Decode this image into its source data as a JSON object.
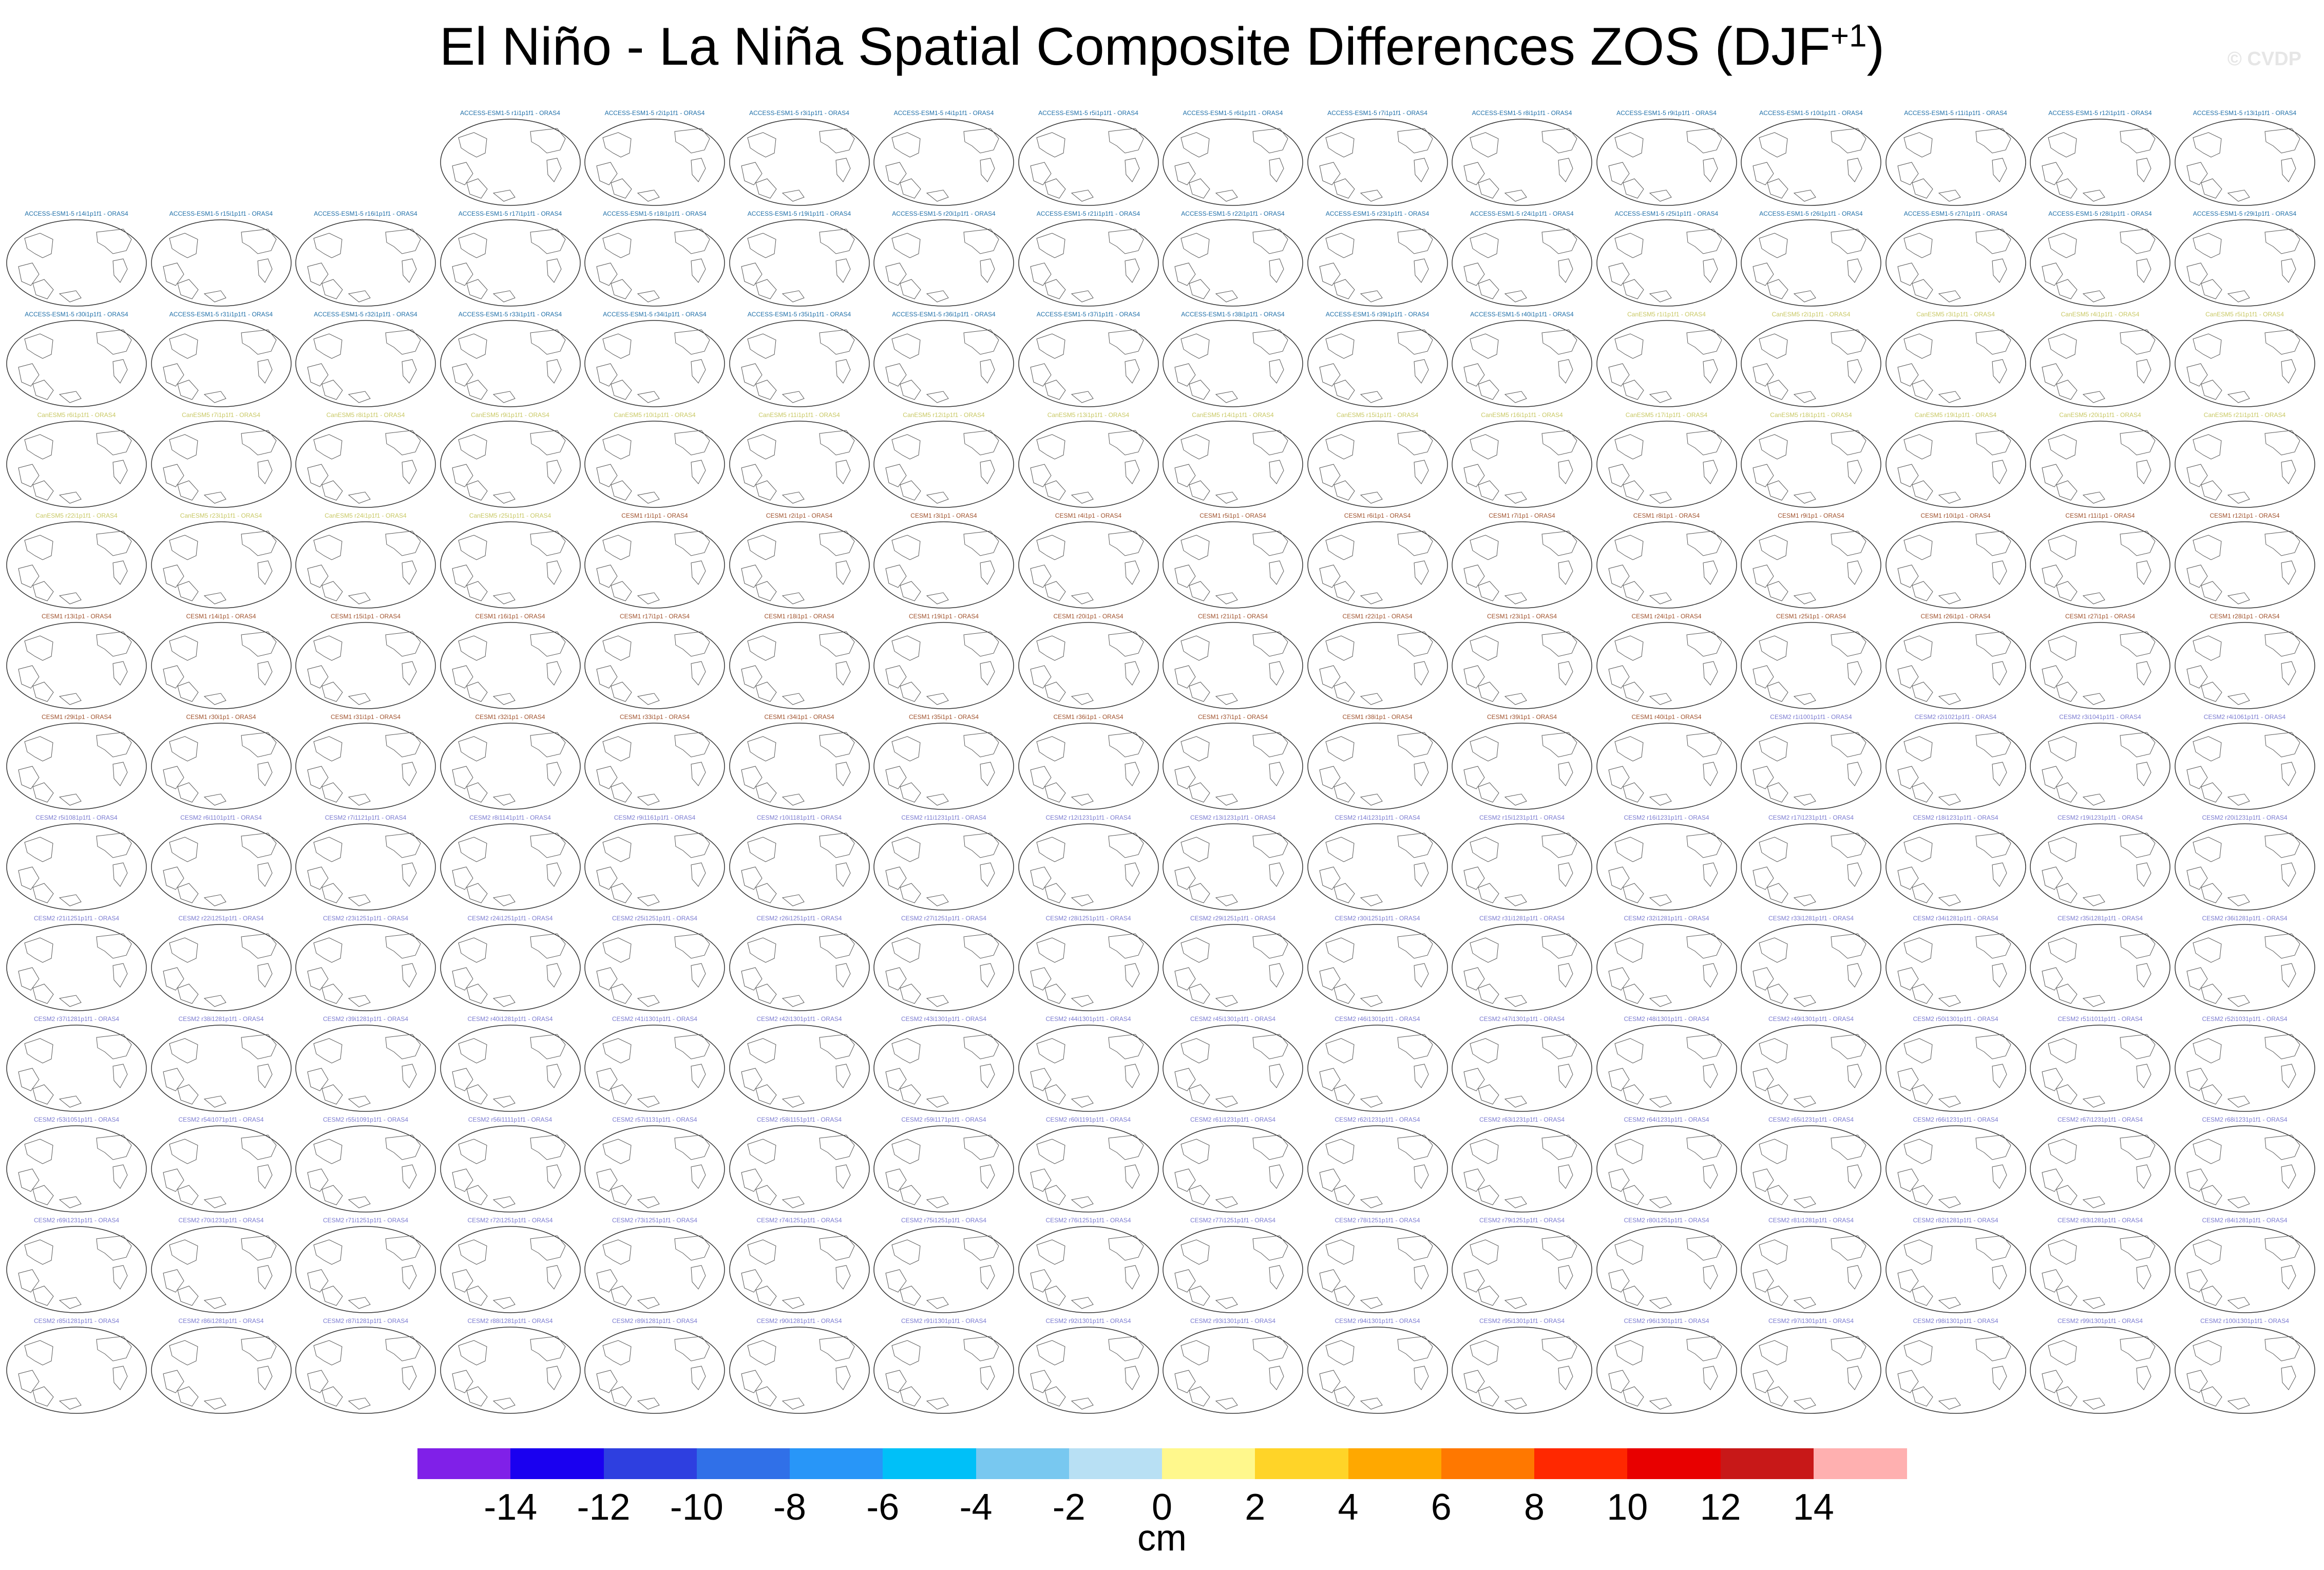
{
  "title": {
    "main": "El Niño - La Niña Spatial Composite Differences ZOS (DJF",
    "superscript": "+1",
    "close": ")"
  },
  "watermark": "© CVDP",
  "units": "cm",
  "colors": {
    "access_label": "#1f6fa8",
    "canesm_label": "#c8c864",
    "cesm1_label": "#a0522d",
    "cesm2_label": "#7b7bd0",
    "coast": "#555555",
    "map_outline": "#333333"
  },
  "chart_data": {
    "type": "heatmap",
    "description_of_panels": "Grid of global ocean maps (Pacific-centered) per ensemble member; maps show only coastlines (no visible shading).",
    "title": "El Niño - La Niña Spatial Composite Differences ZOS (DJF+1)",
    "colorbar": {
      "units": "cm",
      "levels": [
        -14,
        -12,
        -10,
        -8,
        -6,
        -4,
        -2,
        0,
        2,
        4,
        6,
        8,
        10,
        12,
        14
      ],
      "tick_labels": [
        "-14",
        "-12",
        "-10",
        "-8",
        "-6",
        "-4",
        "-2",
        "0",
        "2",
        "4",
        "6",
        "8",
        "10",
        "12",
        "14"
      ],
      "colors": [
        "#8020e8",
        "#1a00f0",
        "#2e3fe0",
        "#3070e8",
        "#2896f8",
        "#00c0f8",
        "#78c8f0",
        "#b8e0f4",
        "#fff88c",
        "#ffd428",
        "#ffa800",
        "#ff7800",
        "#ff2800",
        "#e80000",
        "#c81818",
        "#ffb0b0"
      ]
    },
    "panels": {
      "rows": [
        [
          "ACCESS-ESM1-5 r1i1p1f1 - ORAS4",
          "ACCESS-ESM1-5 r2i1p1f1 - ORAS4",
          "ACCESS-ESM1-5 r3i1p1f1 - ORAS4",
          "ACCESS-ESM1-5 r4i1p1f1 - ORAS4",
          "ACCESS-ESM1-5 r5i1p1f1 - ORAS4",
          "ACCESS-ESM1-5 r6i1p1f1 - ORAS4",
          "ACCESS-ESM1-5 r7i1p1f1 - ORAS4",
          "ACCESS-ESM1-5 r8i1p1f1 - ORAS4",
          "ACCESS-ESM1-5 r9i1p1f1 - ORAS4",
          "ACCESS-ESM1-5 r10i1p1f1 - ORAS4",
          "ACCESS-ESM1-5 r11i1p1f1 - ORAS4",
          "ACCESS-ESM1-5 r12i1p1f1 - ORAS4",
          "ACCESS-ESM1-5 r13i1p1f1 - ORAS4"
        ],
        [
          "ACCESS-ESM1-5 r14i1p1f1 - ORAS4",
          "ACCESS-ESM1-5 r15i1p1f1 - ORAS4",
          "ACCESS-ESM1-5 r16i1p1f1 - ORAS4",
          "ACCESS-ESM1-5 r17i1p1f1 - ORAS4",
          "ACCESS-ESM1-5 r18i1p1f1 - ORAS4",
          "ACCESS-ESM1-5 r19i1p1f1 - ORAS4",
          "ACCESS-ESM1-5 r20i1p1f1 - ORAS4",
          "ACCESS-ESM1-5 r21i1p1f1 - ORAS4",
          "ACCESS-ESM1-5 r22i1p1f1 - ORAS4",
          "ACCESS-ESM1-5 r23i1p1f1 - ORAS4",
          "ACCESS-ESM1-5 r24i1p1f1 - ORAS4",
          "ACCESS-ESM1-5 r25i1p1f1 - ORAS4",
          "ACCESS-ESM1-5 r26i1p1f1 - ORAS4",
          "ACCESS-ESM1-5 r27i1p1f1 - ORAS4",
          "ACCESS-ESM1-5 r28i1p1f1 - ORAS4",
          "ACCESS-ESM1-5 r29i1p1f1 - ORAS4"
        ],
        [
          "ACCESS-ESM1-5 r30i1p1f1 - ORAS4",
          "ACCESS-ESM1-5 r31i1p1f1 - ORAS4",
          "ACCESS-ESM1-5 r32i1p1f1 - ORAS4",
          "ACCESS-ESM1-5 r33i1p1f1 - ORAS4",
          "ACCESS-ESM1-5 r34i1p1f1 - ORAS4",
          "ACCESS-ESM1-5 r35i1p1f1 - ORAS4",
          "ACCESS-ESM1-5 r36i1p1f1 - ORAS4",
          "ACCESS-ESM1-5 r37i1p1f1 - ORAS4",
          "ACCESS-ESM1-5 r38i1p1f1 - ORAS4",
          "ACCESS-ESM1-5 r39i1p1f1 - ORAS4",
          "ACCESS-ESM1-5 r40i1p1f1 - ORAS4",
          "CanESM5 r1i1p1f1 - ORAS4",
          "CanESM5 r2i1p1f1 - ORAS4",
          "CanESM5 r3i1p1f1 - ORAS4",
          "CanESM5 r4i1p1f1 - ORAS4",
          "CanESM5 r5i1p1f1 - ORAS4"
        ],
        [
          "CanESM5 r6i1p1f1 - ORAS4",
          "CanESM5 r7i1p1f1 - ORAS4",
          "CanESM5 r8i1p1f1 - ORAS4",
          "CanESM5 r9i1p1f1 - ORAS4",
          "CanESM5 r10i1p1f1 - ORAS4",
          "CanESM5 r11i1p1f1 - ORAS4",
          "CanESM5 r12i1p1f1 - ORAS4",
          "CanESM5 r13i1p1f1 - ORAS4",
          "CanESM5 r14i1p1f1 - ORAS4",
          "CanESM5 r15i1p1f1 - ORAS4",
          "CanESM5 r16i1p1f1 - ORAS4",
          "CanESM5 r17i1p1f1 - ORAS4",
          "CanESM5 r18i1p1f1 - ORAS4",
          "CanESM5 r19i1p1f1 - ORAS4",
          "CanESM5 r20i1p1f1 - ORAS4",
          "CanESM5 r21i1p1f1 - ORAS4"
        ],
        [
          "CanESM5 r22i1p1f1 - ORAS4",
          "CanESM5 r23i1p1f1 - ORAS4",
          "CanESM5 r24i1p1f1 - ORAS4",
          "CanESM5 r25i1p1f1 - ORAS4",
          "CESM1 r1i1p1 - ORAS4",
          "CESM1 r2i1p1 - ORAS4",
          "CESM1 r3i1p1 - ORAS4",
          "CESM1 r4i1p1 - ORAS4",
          "CESM1 r5i1p1 - ORAS4",
          "CESM1 r6i1p1 - ORAS4",
          "CESM1 r7i1p1 - ORAS4",
          "CESM1 r8i1p1 - ORAS4",
          "CESM1 r9i1p1 - ORAS4",
          "CESM1 r10i1p1 - ORAS4",
          "CESM1 r11i1p1 - ORAS4",
          "CESM1 r12i1p1 - ORAS4"
        ],
        [
          "CESM1 r13i1p1 - ORAS4",
          "CESM1 r14i1p1 - ORAS4",
          "CESM1 r15i1p1 - ORAS4",
          "CESM1 r16i1p1 - ORAS4",
          "CESM1 r17i1p1 - ORAS4",
          "CESM1 r18i1p1 - ORAS4",
          "CESM1 r19i1p1 - ORAS4",
          "CESM1 r20i1p1 - ORAS4",
          "CESM1 r21i1p1 - ORAS4",
          "CESM1 r22i1p1 - ORAS4",
          "CESM1 r23i1p1 - ORAS4",
          "CESM1 r24i1p1 - ORAS4",
          "CESM1 r25i1p1 - ORAS4",
          "CESM1 r26i1p1 - ORAS4",
          "CESM1 r27i1p1 - ORAS4",
          "CESM1 r28i1p1 - ORAS4"
        ],
        [
          "CESM1 r29i1p1 - ORAS4",
          "CESM1 r30i1p1 - ORAS4",
          "CESM1 r31i1p1 - ORAS4",
          "CESM1 r32i1p1 - ORAS4",
          "CESM1 r33i1p1 - ORAS4",
          "CESM1 r34i1p1 - ORAS4",
          "CESM1 r35i1p1 - ORAS4",
          "CESM1 r36i1p1 - ORAS4",
          "CESM1 r37i1p1 - ORAS4",
          "CESM1 r38i1p1 - ORAS4",
          "CESM1 r39i1p1 - ORAS4",
          "CESM1 r40i1p1 - ORAS4",
          "CESM2 r1i1001p1f1 - ORAS4",
          "CESM2 r2i1021p1f1 - ORAS4",
          "CESM2 r3i1041p1f1 - ORAS4",
          "CESM2 r4i1061p1f1 - ORAS4"
        ],
        [
          "CESM2 r5i1081p1f1 - ORAS4",
          "CESM2 r6i1101p1f1 - ORAS4",
          "CESM2 r7i1121p1f1 - ORAS4",
          "CESM2 r8i1141p1f1 - ORAS4",
          "CESM2 r9i1161p1f1 - ORAS4",
          "CESM2 r10i1181p1f1 - ORAS4",
          "CESM2 r11i1231p1f1 - ORAS4",
          "CESM2 r12i1231p1f1 - ORAS4",
          "CESM2 r13i1231p1f1 - ORAS4",
          "CESM2 r14i1231p1f1 - ORAS4",
          "CESM2 r15i1231p1f1 - ORAS4",
          "CESM2 r16i1231p1f1 - ORAS4",
          "CESM2 r17i1231p1f1 - ORAS4",
          "CESM2 r18i1231p1f1 - ORAS4",
          "CESM2 r19i1231p1f1 - ORAS4",
          "CESM2 r20i1231p1f1 - ORAS4"
        ],
        [
          "CESM2 r21i1251p1f1 - ORAS4",
          "CESM2 r22i1251p1f1 - ORAS4",
          "CESM2 r23i1251p1f1 - ORAS4",
          "CESM2 r24i1251p1f1 - ORAS4",
          "CESM2 r25i1251p1f1 - ORAS4",
          "CESM2 r26i1251p1f1 - ORAS4",
          "CESM2 r27i1251p1f1 - ORAS4",
          "CESM2 r28i1251p1f1 - ORAS4",
          "CESM2 r29i1251p1f1 - ORAS4",
          "CESM2 r30i1251p1f1 - ORAS4",
          "CESM2 r31i1281p1f1 - ORAS4",
          "CESM2 r32i1281p1f1 - ORAS4",
          "CESM2 r33i1281p1f1 - ORAS4",
          "CESM2 r34i1281p1f1 - ORAS4",
          "CESM2 r35i1281p1f1 - ORAS4",
          "CESM2 r36i1281p1f1 - ORAS4"
        ],
        [
          "CESM2 r37i1281p1f1 - ORAS4",
          "CESM2 r38i1281p1f1 - ORAS4",
          "CESM2 r39i1281p1f1 - ORAS4",
          "CESM2 r40i1281p1f1 - ORAS4",
          "CESM2 r41i1301p1f1 - ORAS4",
          "CESM2 r42i1301p1f1 - ORAS4",
          "CESM2 r43i1301p1f1 - ORAS4",
          "CESM2 r44i1301p1f1 - ORAS4",
          "CESM2 r45i1301p1f1 - ORAS4",
          "CESM2 r46i1301p1f1 - ORAS4",
          "CESM2 r47i1301p1f1 - ORAS4",
          "CESM2 r48i1301p1f1 - ORAS4",
          "CESM2 r49i1301p1f1 - ORAS4",
          "CESM2 r50i1301p1f1 - ORAS4",
          "CESM2 r51i1011p1f1 - ORAS4",
          "CESM2 r52i1031p1f1 - ORAS4"
        ],
        [
          "CESM2 r53i1051p1f1 - ORAS4",
          "CESM2 r54i1071p1f1 - ORAS4",
          "CESM2 r55i1091p1f1 - ORAS4",
          "CESM2 r56i1111p1f1 - ORAS4",
          "CESM2 r57i1131p1f1 - ORAS4",
          "CESM2 r58i1151p1f1 - ORAS4",
          "CESM2 r59i1171p1f1 - ORAS4",
          "CESM2 r60i1191p1f1 - ORAS4",
          "CESM2 r61i1231p1f1 - ORAS4",
          "CESM2 r62i1231p1f1 - ORAS4",
          "CESM2 r63i1231p1f1 - ORAS4",
          "CESM2 r64i1231p1f1 - ORAS4",
          "CESM2 r65i1231p1f1 - ORAS4",
          "CESM2 r66i1231p1f1 - ORAS4",
          "CESM2 r67i1231p1f1 - ORAS4",
          "CESM2 r68i1231p1f1 - ORAS4"
        ],
        [
          "CESM2 r69i1231p1f1 - ORAS4",
          "CESM2 r70i1231p1f1 - ORAS4",
          "CESM2 r71i1251p1f1 - ORAS4",
          "CESM2 r72i1251p1f1 - ORAS4",
          "CESM2 r73i1251p1f1 - ORAS4",
          "CESM2 r74i1251p1f1 - ORAS4",
          "CESM2 r75i1251p1f1 - ORAS4",
          "CESM2 r76i1251p1f1 - ORAS4",
          "CESM2 r77i1251p1f1 - ORAS4",
          "CESM2 r78i1251p1f1 - ORAS4",
          "CESM2 r79i1251p1f1 - ORAS4",
          "CESM2 r80i1251p1f1 - ORAS4",
          "CESM2 r81i1281p1f1 - ORAS4",
          "CESM2 r82i1281p1f1 - ORAS4",
          "CESM2 r83i1281p1f1 - ORAS4",
          "CESM2 r84i1281p1f1 - ORAS4"
        ],
        [
          "CESM2 r85i1281p1f1 - ORAS4",
          "CESM2 r86i1281p1f1 - ORAS4",
          "CESM2 r87i1281p1f1 - ORAS4",
          "CESM2 r88i1281p1f1 - ORAS4",
          "CESM2 r89i1281p1f1 - ORAS4",
          "CESM2 r90i1281p1f1 - ORAS4",
          "CESM2 r91i1301p1f1 - ORAS4",
          "CESM2 r92i1301p1f1 - ORAS4",
          "CESM2 r93i1301p1f1 - ORAS4",
          "CESM2 r94i1301p1f1 - ORAS4",
          "CESM2 r95i1301p1f1 - ORAS4",
          "CESM2 r96i1301p1f1 - ORAS4",
          "CESM2 r97i1301p1f1 - ORAS4",
          "CESM2 r98i1301p1f1 - ORAS4",
          "CESM2 r99i1301p1f1 - ORAS4",
          "CESM2 r100i1301p1f1 - ORAS4"
        ]
      ]
    }
  }
}
